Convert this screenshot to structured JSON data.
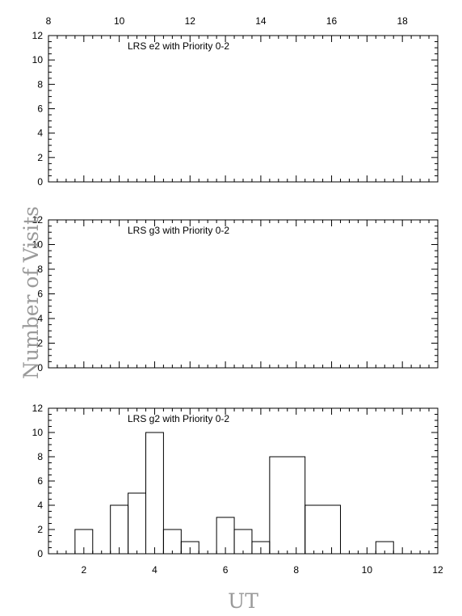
{
  "figure": {
    "ylabel": "Number of Visits",
    "xlabel": "UT"
  },
  "chart_data": [
    {
      "type": "histogram",
      "title": "LRS e2 with Priority 0-2",
      "xlim": [
        8,
        19
      ],
      "ylim": [
        0,
        12
      ],
      "x_ticks": [
        8,
        10,
        12,
        14,
        16,
        18
      ],
      "x_ticks_position": "top",
      "y_ticks": [
        0,
        2,
        4,
        6,
        8,
        10,
        12
      ],
      "bins": []
    },
    {
      "type": "histogram",
      "title": "LRS g3 with Priority 0-2",
      "xlim": [
        8,
        19
      ],
      "ylim": [
        0,
        12
      ],
      "x_ticks": [],
      "y_ticks": [
        0,
        2,
        4,
        6,
        8,
        10,
        12
      ],
      "bins": []
    },
    {
      "type": "histogram",
      "title": "LRS g2 with Priority 0-2",
      "xlim": [
        1,
        12
      ],
      "ylim": [
        0,
        12
      ],
      "x_ticks": [
        2,
        4,
        6,
        8,
        10,
        12
      ],
      "x_ticks_position": "bottom",
      "y_ticks": [
        0,
        2,
        4,
        6,
        8,
        10,
        12
      ],
      "bins": [
        {
          "x0": 1.75,
          "x1": 2.25,
          "count": 2
        },
        {
          "x0": 2.75,
          "x1": 3.25,
          "count": 4
        },
        {
          "x0": 3.25,
          "x1": 3.75,
          "count": 5
        },
        {
          "x0": 3.75,
          "x1": 4.25,
          "count": 10
        },
        {
          "x0": 4.25,
          "x1": 4.75,
          "count": 2
        },
        {
          "x0": 4.75,
          "x1": 5.25,
          "count": 1
        },
        {
          "x0": 5.75,
          "x1": 6.25,
          "count": 3
        },
        {
          "x0": 6.25,
          "x1": 6.75,
          "count": 2
        },
        {
          "x0": 6.75,
          "x1": 7.25,
          "count": 1
        },
        {
          "x0": 7.25,
          "x1": 8.25,
          "count": 8
        },
        {
          "x0": 8.25,
          "x1": 9.25,
          "count": 4
        },
        {
          "x0": 10.25,
          "x1": 10.75,
          "count": 1
        }
      ]
    }
  ]
}
